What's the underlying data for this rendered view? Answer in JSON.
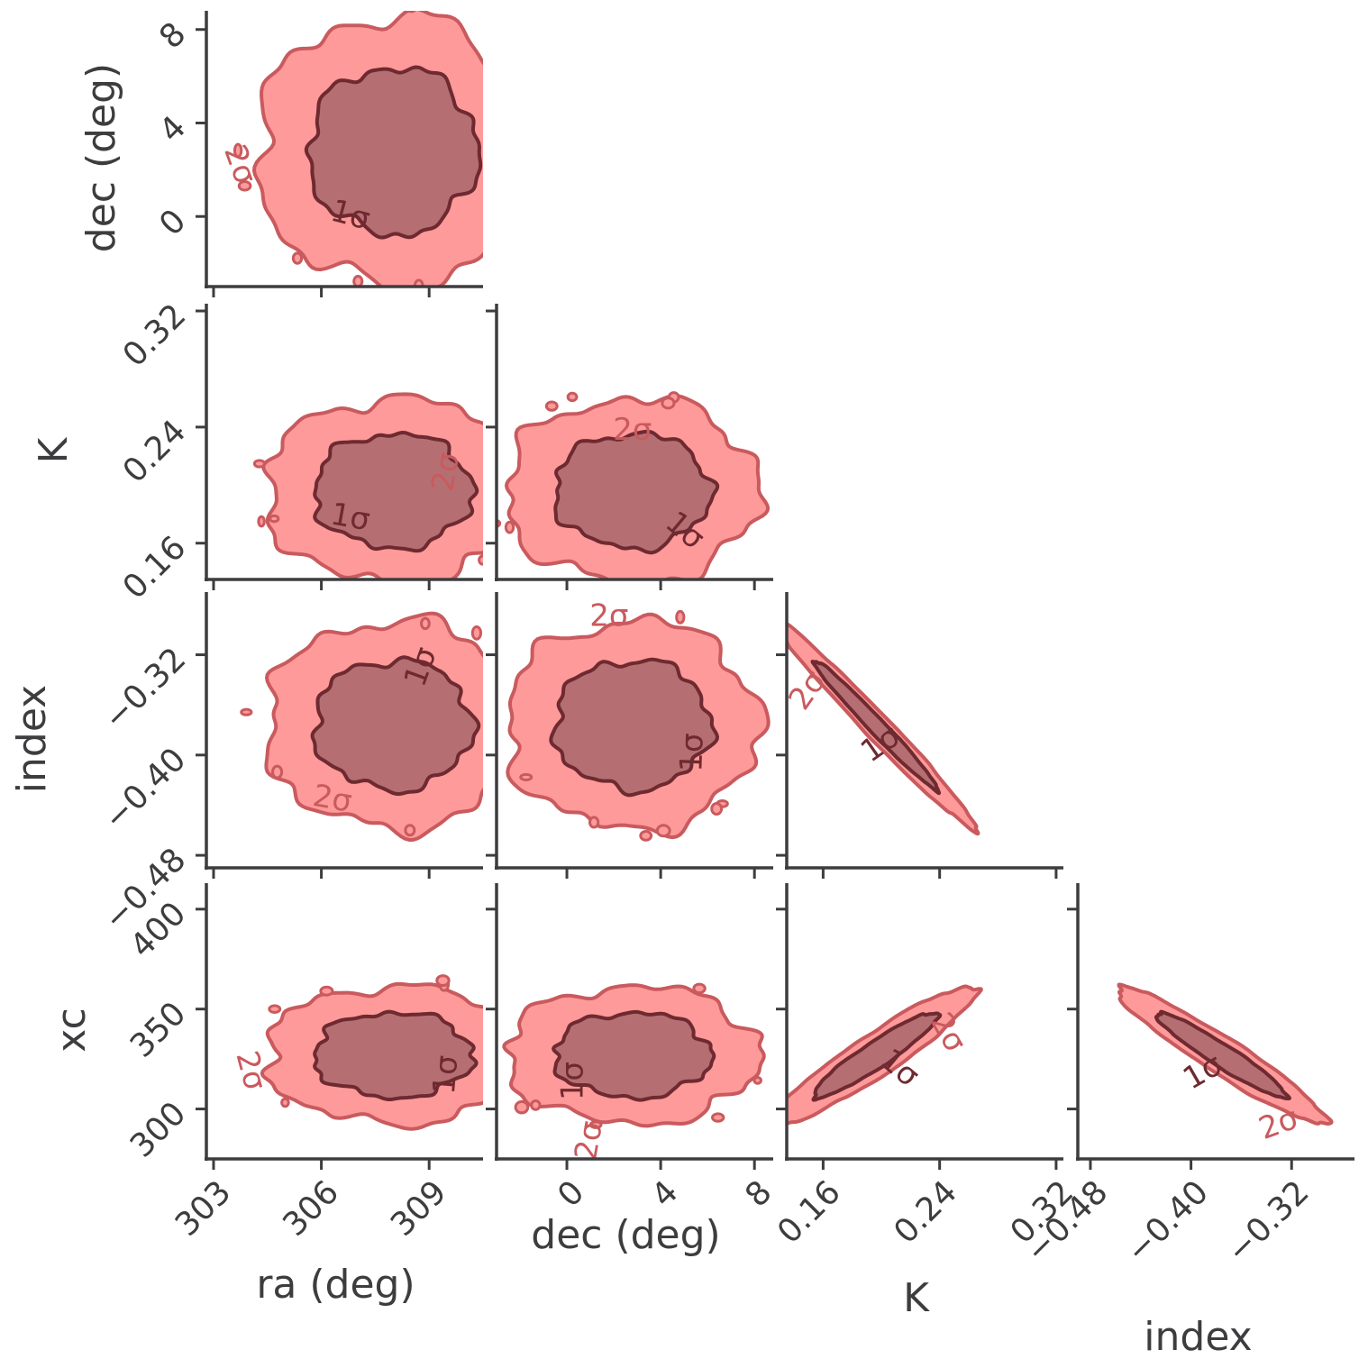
{
  "chart_data": {
    "type": "corner",
    "params": [
      {
        "name": "ra",
        "label": "ra (deg)",
        "range": [
          302.8,
          310.5
        ],
        "ticks": [
          "303",
          "306",
          "309"
        ],
        "tick_values": [
          303,
          306,
          309
        ]
      },
      {
        "name": "dec",
        "label": "dec (deg)",
        "range": [
          -3.0,
          8.8
        ],
        "ticks": [
          "0",
          "4",
          "8"
        ],
        "tick_values": [
          0,
          4,
          8
        ]
      },
      {
        "name": "K",
        "label": "K",
        "range": [
          0.135,
          0.325
        ],
        "ticks": [
          "0.16",
          "0.24",
          "0.32"
        ],
        "tick_values": [
          0.16,
          0.24,
          0.32
        ]
      },
      {
        "name": "index",
        "label": "index",
        "range": [
          -0.49,
          -0.27
        ],
        "ticks": [
          "−0.48",
          "−0.40",
          "−0.32"
        ],
        "tick_values": [
          -0.48,
          -0.4,
          -0.32
        ]
      },
      {
        "name": "xc",
        "label": "xc",
        "range": [
          275,
          413
        ],
        "ticks": [
          "300",
          "350",
          "400"
        ],
        "tick_values": [
          300,
          350,
          400
        ]
      }
    ],
    "contour_levels": [
      "1σ",
      "2σ"
    ],
    "colors": {
      "outer_fill": "#ff9a9a",
      "inner_fill": "#b56f72",
      "outer_line": "#c95a5e",
      "inner_line": "#6e2a30",
      "axis": "#3d3d3f",
      "text": "#3d3d3f"
    },
    "panels": [
      {
        "x": "ra",
        "y": "dec",
        "center": [
          308.0,
          2.8
        ],
        "sigma": [
          1.55,
          2.35
        ],
        "rho": 0.0,
        "labels": [
          {
            "text": "2σ",
            "at": [
              303.7,
              2.2
            ],
            "angle": -70
          },
          {
            "text": "1σ",
            "at": [
              306.8,
              0.0
            ],
            "angle": -15
          }
        ]
      },
      {
        "x": "ra",
        "y": "K",
        "center": [
          308.0,
          0.196
        ],
        "sigma": [
          1.45,
          0.026
        ],
        "rho": 0.0,
        "labels": [
          {
            "text": "1σ",
            "at": [
              306.8,
              0.177
            ],
            "angle": -10
          },
          {
            "text": "2σ",
            "at": [
              309.5,
              0.209
            ],
            "angle": 80
          }
        ]
      },
      {
        "x": "dec",
        "y": "K",
        "center": [
          2.8,
          0.196
        ],
        "sigma": [
          2.2,
          0.026
        ],
        "rho": 0.0,
        "labels": [
          {
            "text": "2σ",
            "at": [
              2.8,
              0.237
            ],
            "angle": 0
          },
          {
            "text": "1σ",
            "at": [
              5.0,
              0.168
            ],
            "angle": -40
          }
        ]
      },
      {
        "x": "ra",
        "y": "index",
        "center": [
          308.0,
          -0.376
        ],
        "sigma": [
          1.45,
          0.034
        ],
        "rho": 0.0,
        "labels": [
          {
            "text": "1σ",
            "at": [
              308.8,
              -0.33
            ],
            "angle": 70
          },
          {
            "text": "2σ",
            "at": [
              306.3,
              -0.436
            ],
            "angle": -10
          }
        ]
      },
      {
        "x": "dec",
        "y": "index",
        "center": [
          2.8,
          -0.376
        ],
        "sigma": [
          2.2,
          0.034
        ],
        "rho": 0.0,
        "labels": [
          {
            "text": "2σ",
            "at": [
              1.8,
              -0.29
            ],
            "angle": 0
          },
          {
            "text": "1σ",
            "at": [
              5.4,
              -0.398
            ],
            "angle": 88
          }
        ]
      },
      {
        "x": "K",
        "y": "index",
        "center": [
          0.196,
          -0.376
        ],
        "sigma": [
          0.028,
          0.034
        ],
        "rho": -0.985,
        "labels": [
          {
            "text": "2σ",
            "at": [
              0.15,
              -0.349
            ],
            "angle": 55
          },
          {
            "text": "1σ",
            "at": [
              0.2,
              -0.392
            ],
            "angle": 35
          }
        ]
      },
      {
        "x": "ra",
        "y": "xc",
        "center": [
          308.0,
          327
        ],
        "sigma": [
          1.45,
          14
        ],
        "rho": 0.0,
        "labels": [
          {
            "text": "2σ",
            "at": [
              304.0,
              319
            ],
            "angle": -75
          },
          {
            "text": "1σ",
            "at": [
              309.5,
              317
            ],
            "angle": 85
          }
        ]
      },
      {
        "x": "dec",
        "y": "xc",
        "center": [
          2.8,
          327
        ],
        "sigma": [
          2.2,
          14
        ],
        "rho": 0.0,
        "labels": [
          {
            "text": "1σ",
            "at": [
              0.3,
              314
            ],
            "angle": 90
          },
          {
            "text": "2σ",
            "at": [
              1.0,
              284
            ],
            "angle": 80
          }
        ]
      },
      {
        "x": "K",
        "y": "xc",
        "center": [
          0.196,
          327
        ],
        "sigma": [
          0.028,
          14
        ],
        "rho": 0.93,
        "labels": [
          {
            "text": "1σ",
            "at": [
              0.212,
              320
            ],
            "angle": -40
          },
          {
            "text": "2σ",
            "at": [
              0.245,
              338
            ],
            "angle": -60
          }
        ]
      },
      {
        "x": "index",
        "y": "xc",
        "center": [
          -0.376,
          327
        ],
        "sigma": [
          0.034,
          14
        ],
        "rho": -0.95,
        "labels": [
          {
            "text": "1σ",
            "at": [
              -0.39,
              318
            ],
            "angle": 30
          },
          {
            "text": "2σ",
            "at": [
              -0.33,
              292
            ],
            "angle": 20
          }
        ]
      }
    ]
  }
}
